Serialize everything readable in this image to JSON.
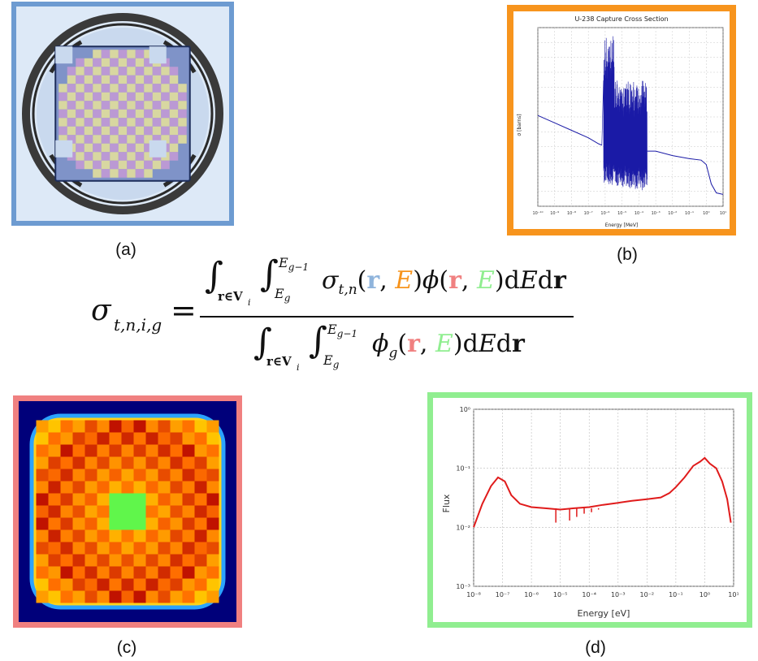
{
  "panels": {
    "a": {
      "caption": "(a)",
      "border_color": "#6d9bd1"
    },
    "b": {
      "caption": "(b)",
      "border_color": "#f7941d",
      "title": "U-238 Capture Cross Section",
      "xlabel": "Energy [MeV]",
      "ylabel": "σ [barns]"
    },
    "c": {
      "caption": "(c)",
      "border_color": "#f08080"
    },
    "d": {
      "caption": "(d)",
      "border_color": "#90ee90",
      "xlabel": "Energy [eV]",
      "ylabel": "Flux"
    }
  },
  "equation": {
    "lhs": "σ",
    "lhs_sub": "t,n,i,g",
    "eq": "=",
    "int_domain": "r∈V",
    "int_domain_sub": "i",
    "upper_limit": "E",
    "upper_limit_sub": "g−1",
    "lower_limit": "E",
    "lower_limit_sub": "g",
    "sigma": "σ",
    "sigma_sub": "t,n",
    "phi": "ϕ",
    "phi_sub": "g",
    "r": "r",
    "E": "E",
    "comma": ",",
    "lparen": "(",
    "rparen": ")",
    "dE": "dE",
    "dr": "dr",
    "colors": {
      "r_num": "#8fb4dc",
      "E_num": "#f7941d",
      "r_den": "#f08080",
      "E_den": "#90ee90"
    }
  },
  "chart_data": [
    {
      "type": "line",
      "title": "U-238 Capture Cross Section",
      "xlabel": "Energy [MeV]",
      "ylabel": "σ [barns]",
      "xscale": "log",
      "yscale": "log",
      "xticks": [
        "10⁻¹⁰",
        "10⁻⁹",
        "10⁻⁸",
        "10⁻⁷",
        "10⁻⁶",
        "10⁻⁵",
        "10⁻⁴",
        "10⁻³",
        "10⁻²",
        "10⁻¹",
        "10⁰",
        "10¹"
      ],
      "series": [
        {
          "color": "#1a1aa6",
          "x": [
            1e-10,
            1e-09,
            1e-08,
            1e-07,
            3e-07,
            6e-07,
            1e-06,
            6.7e-06,
            1e-05,
            2e-05,
            0.0001,
            0.0005,
            0.001,
            0.01,
            0.05,
            0.1,
            0.3,
            1,
            5,
            10,
            20
          ],
          "y": [
            100,
            30,
            10,
            3,
            2,
            1.6,
            1.5,
            7000,
            1.4,
            200,
            20,
            8,
            2,
            1.5,
            1.2,
            0.7,
            0.3,
            0.1,
            0.05,
            0.002,
            0.002
          ]
        }
      ]
    },
    {
      "type": "line",
      "xlabel": "Energy [eV]",
      "ylabel": "Flux",
      "xscale": "log",
      "yscale": "log",
      "xlim": [
        1e-08,
        10
      ],
      "ylim": [
        0.001,
        1
      ],
      "xticks": [
        "10⁻⁸",
        "10⁻⁷",
        "10⁻⁶",
        "10⁻⁵",
        "10⁻⁴",
        "10⁻³",
        "10⁻²",
        "10⁻¹",
        "10⁰",
        "10¹"
      ],
      "yticks": [
        "10⁻³",
        "10⁻²",
        "10⁻¹",
        "10⁰"
      ],
      "grid": true,
      "series": [
        {
          "color": "#e01b1b",
          "x": [
            1e-08,
            2e-08,
            4e-08,
            7e-08,
            1.2e-07,
            2e-07,
            4e-07,
            1e-06,
            3e-06,
            1e-05,
            3e-05,
            0.0001,
            0.0003,
            0.001,
            0.003,
            0.01,
            0.03,
            0.06,
            0.1,
            0.2,
            0.4,
            0.7,
            1,
            1.5,
            2.5,
            4,
            6,
            8
          ],
          "y": [
            0.01,
            0.025,
            0.05,
            0.07,
            0.06,
            0.035,
            0.025,
            0.022,
            0.021,
            0.02,
            0.021,
            0.022,
            0.024,
            0.026,
            0.028,
            0.03,
            0.032,
            0.038,
            0.048,
            0.07,
            0.11,
            0.13,
            0.15,
            0.12,
            0.1,
            0.06,
            0.03,
            0.012
          ]
        }
      ]
    }
  ]
}
